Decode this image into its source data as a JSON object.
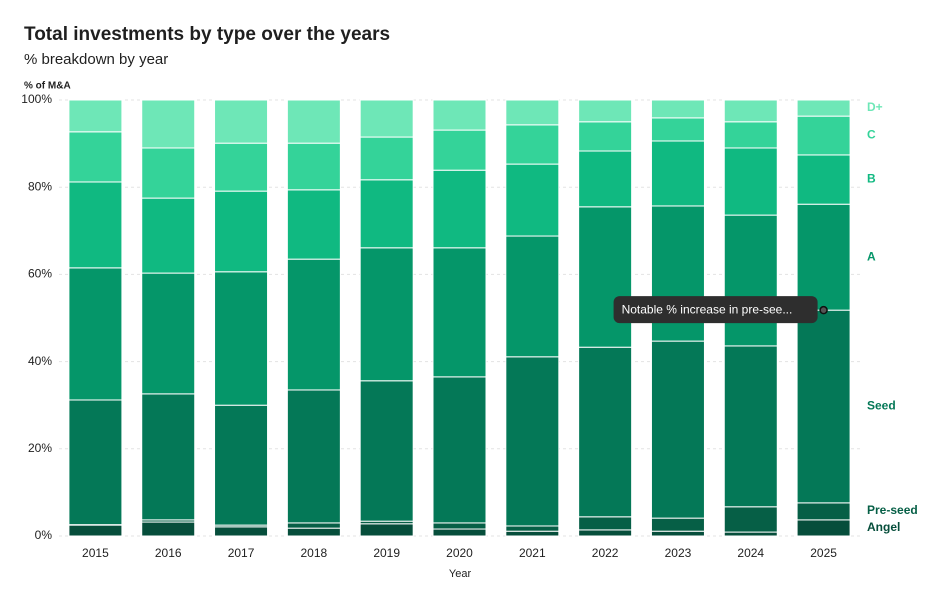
{
  "chart_data": {
    "type": "stacked_bar",
    "title": "Total investments by type over the years",
    "subtitle": "% breakdown by year",
    "y_label": "% of M&A",
    "x_label": "Year",
    "annotation": "Notable % increase in pre-see...",
    "categories": [
      "2015",
      "2016",
      "2017",
      "2018",
      "2019",
      "2020",
      "2021",
      "2022",
      "2023",
      "2024",
      "2025"
    ],
    "ylim": [
      0,
      100
    ],
    "yticks": [
      {
        "value": 0,
        "label": "0%"
      },
      {
        "value": 20,
        "label": "20%"
      },
      {
        "value": 40,
        "label": "40%"
      },
      {
        "value": 60,
        "label": "60%"
      },
      {
        "value": 80,
        "label": "80%"
      },
      {
        "value": 100,
        "label": "100%"
      }
    ],
    "grid": true,
    "series": [
      {
        "name": "Angel",
        "color": "#064e3b",
        "values": [
          2.5,
          3.2,
          2.1,
          1.8,
          2.8,
          1.6,
          1.1,
          1.4,
          1.1,
          0.9,
          3.7
        ]
      },
      {
        "name": "Pre-seed",
        "color": "#065f46",
        "values": [
          0.1,
          0.5,
          0.4,
          1.2,
          0.6,
          1.4,
          1.2,
          3.0,
          3.0,
          5.8,
          3.9
        ]
      },
      {
        "name": "Seed",
        "color": "#047857",
        "values": [
          28.6,
          28.9,
          27.5,
          30.5,
          32.2,
          33.5,
          38.8,
          38.9,
          40.6,
          36.9,
          44.2
        ]
      },
      {
        "name": "A",
        "color": "#059669",
        "values": [
          30.3,
          27.7,
          30.6,
          30.0,
          30.5,
          29.6,
          27.7,
          32.2,
          31.0,
          30.0,
          24.3
        ]
      },
      {
        "name": "B",
        "color": "#10b981",
        "values": [
          19.7,
          17.2,
          18.5,
          15.9,
          15.6,
          17.8,
          16.5,
          12.8,
          14.9,
          15.4,
          11.3
        ]
      },
      {
        "name": "C",
        "color": "#34d399",
        "values": [
          11.5,
          11.5,
          11.0,
          10.7,
          9.8,
          9.2,
          9.0,
          6.7,
          5.3,
          6.0,
          8.9
        ]
      },
      {
        "name": "D+",
        "color": "#6ee7b7",
        "values": [
          7.3,
          11.0,
          9.9,
          9.9,
          8.5,
          6.9,
          5.7,
          5.0,
          4.1,
          5.0,
          3.7
        ]
      }
    ]
  }
}
